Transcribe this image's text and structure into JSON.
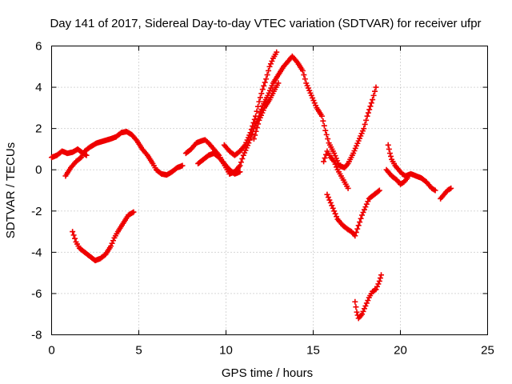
{
  "chart_data": {
    "type": "scatter",
    "title": "Day 141 of 2017, Sidereal Day-to-day VTEC variation (SDTVAR) for receiver ufpr",
    "xlabel": "GPS time / hours",
    "ylabel": "SDTVAR / TECUs",
    "xlim": [
      0,
      25
    ],
    "ylim": [
      -8,
      6
    ],
    "xticks": [
      0,
      5,
      10,
      15,
      20,
      25
    ],
    "yticks": [
      -8,
      -6,
      -4,
      -2,
      0,
      2,
      4,
      6
    ],
    "grid": true,
    "marker": "+",
    "color": "#ee0000",
    "series": [
      {
        "points": [
          [
            0,
            0.6
          ],
          [
            0.3,
            0.7
          ],
          [
            0.6,
            0.9
          ],
          [
            0.9,
            0.8
          ],
          [
            1.2,
            0.85
          ],
          [
            1.5,
            1.0
          ],
          [
            1.8,
            0.8
          ],
          [
            2.0,
            0.7
          ]
        ]
      },
      {
        "points": [
          [
            0.8,
            -0.3
          ],
          [
            1.1,
            0.1
          ],
          [
            1.4,
            0.4
          ],
          [
            1.7,
            0.6
          ],
          [
            1.9,
            0.9
          ],
          [
            2.2,
            1.1
          ],
          [
            2.6,
            1.3
          ],
          [
            3.0,
            1.4
          ],
          [
            3.4,
            1.5
          ],
          [
            3.7,
            1.6
          ],
          [
            4.0,
            1.8
          ],
          [
            4.3,
            1.85
          ],
          [
            4.6,
            1.7
          ],
          [
            4.9,
            1.4
          ],
          [
            5.2,
            1.0
          ],
          [
            5.5,
            0.7
          ],
          [
            5.8,
            0.3
          ],
          [
            6.0,
            0
          ],
          [
            6.3,
            -0.2
          ],
          [
            6.6,
            -0.25
          ],
          [
            6.9,
            -0.1
          ],
          [
            7.2,
            0.1
          ],
          [
            7.5,
            0.2
          ]
        ]
      },
      {
        "points": [
          [
            1.2,
            -3.0
          ],
          [
            1.4,
            -3.5
          ],
          [
            1.6,
            -3.8
          ],
          [
            1.9,
            -4.0
          ],
          [
            2.2,
            -4.2
          ],
          [
            2.5,
            -4.4
          ],
          [
            2.8,
            -4.3
          ],
          [
            3.1,
            -4.1
          ],
          [
            3.4,
            -3.7
          ],
          [
            3.6,
            -3.3
          ],
          [
            3.8,
            -3.0
          ],
          [
            4.1,
            -2.6
          ],
          [
            4.4,
            -2.2
          ],
          [
            4.7,
            -2.05
          ]
        ]
      },
      {
        "points": [
          [
            7.7,
            0.8
          ],
          [
            8.0,
            1.0
          ],
          [
            8.3,
            1.3
          ],
          [
            8.6,
            1.4
          ],
          [
            8.8,
            1.45
          ],
          [
            9.0,
            1.3
          ],
          [
            9.3,
            1.0
          ],
          [
            9.6,
            0.7
          ],
          [
            9.8,
            0.4
          ],
          [
            10.0,
            0.1
          ],
          [
            10.2,
            -0.2
          ],
          [
            10.5,
            -0.1
          ],
          [
            10.8,
            0.2
          ],
          [
            11.0,
            0.7
          ],
          [
            11.3,
            1.3
          ],
          [
            11.6,
            2.0
          ],
          [
            11.9,
            2.6
          ],
          [
            12.1,
            3.1
          ],
          [
            12.4,
            3.6
          ],
          [
            12.7,
            4.2
          ],
          [
            13.0,
            4.6
          ],
          [
            13.3,
            5.0
          ],
          [
            13.6,
            5.3
          ],
          [
            13.8,
            5.5
          ],
          [
            14.1,
            5.2
          ],
          [
            14.4,
            4.8
          ],
          [
            14.6,
            4.2
          ],
          [
            14.9,
            3.6
          ],
          [
            15.2,
            3.0
          ],
          [
            15.5,
            2.6
          ],
          [
            15.7,
            1.9
          ],
          [
            15.9,
            1.3
          ],
          [
            16.2,
            0.8
          ],
          [
            16.5,
            0.2
          ],
          [
            16.8,
            0.1
          ],
          [
            17.0,
            0.3
          ],
          [
            17.3,
            0.8
          ],
          [
            17.6,
            1.4
          ],
          [
            17.9,
            2.0
          ],
          [
            18.1,
            2.6
          ],
          [
            18.4,
            3.4
          ],
          [
            18.6,
            4.0
          ]
        ]
      },
      {
        "points": [
          [
            8.4,
            0.3
          ],
          [
            8.7,
            0.5
          ],
          [
            9.0,
            0.7
          ],
          [
            9.3,
            0.8
          ],
          [
            9.6,
            0.6
          ],
          [
            9.9,
            0.3
          ],
          [
            10.2,
            0
          ],
          [
            10.5,
            -0.2
          ],
          [
            10.8,
            -0.1
          ]
        ]
      },
      {
        "points": [
          [
            9.9,
            1.2
          ],
          [
            10.2,
            0.9
          ],
          [
            10.5,
            0.7
          ],
          [
            10.8,
            0.9
          ],
          [
            11.1,
            1.2
          ],
          [
            11.4,
            1.8
          ],
          [
            11.7,
            2.6
          ],
          [
            11.9,
            3.3
          ],
          [
            12.1,
            3.9
          ],
          [
            12.3,
            4.4
          ],
          [
            12.5,
            5.0
          ],
          [
            12.7,
            5.4
          ],
          [
            12.9,
            5.7
          ]
        ]
      },
      {
        "points": [
          [
            11.6,
            1.5
          ],
          [
            11.9,
            2.4
          ],
          [
            12.2,
            3.0
          ],
          [
            12.5,
            3.4
          ],
          [
            12.8,
            3.9
          ],
          [
            13.0,
            4.2
          ]
        ]
      },
      {
        "points": [
          [
            15.6,
            0.4
          ],
          [
            15.8,
            0.9
          ],
          [
            16.0,
            0.6
          ],
          [
            16.2,
            0.4
          ],
          [
            16.4,
            0.0
          ],
          [
            16.6,
            -0.3
          ],
          [
            16.8,
            -0.6
          ],
          [
            17.0,
            -0.9
          ]
        ]
      },
      {
        "points": [
          [
            15.8,
            -1.2
          ],
          [
            16.0,
            -1.6
          ],
          [
            16.2,
            -2.0
          ],
          [
            16.4,
            -2.4
          ],
          [
            16.7,
            -2.7
          ],
          [
            17.0,
            -2.9
          ],
          [
            17.2,
            -3.0
          ],
          [
            17.4,
            -3.2
          ],
          [
            17.6,
            -2.7
          ],
          [
            17.8,
            -2.2
          ],
          [
            18.0,
            -1.8
          ],
          [
            18.2,
            -1.4
          ],
          [
            18.5,
            -1.2
          ],
          [
            18.8,
            -1.0
          ]
        ]
      },
      {
        "points": [
          [
            17.4,
            -6.4
          ],
          [
            17.5,
            -6.9
          ],
          [
            17.6,
            -7.2
          ],
          [
            17.8,
            -7.0
          ],
          [
            18.0,
            -6.6
          ],
          [
            18.2,
            -6.2
          ],
          [
            18.4,
            -5.9
          ],
          [
            18.6,
            -5.8
          ],
          [
            18.8,
            -5.4
          ],
          [
            18.9,
            -5.1
          ]
        ]
      },
      {
        "points": [
          [
            19.3,
            1.2
          ],
          [
            19.4,
            0.8
          ],
          [
            19.5,
            0.5
          ],
          [
            19.7,
            0.2
          ],
          [
            19.9,
            0.0
          ],
          [
            20.1,
            -0.2
          ],
          [
            20.3,
            -0.3
          ],
          [
            20.6,
            -0.2
          ],
          [
            20.9,
            -0.3
          ],
          [
            21.2,
            -0.4
          ],
          [
            21.5,
            -0.6
          ],
          [
            21.8,
            -0.9
          ],
          [
            22.0,
            -1.0
          ]
        ]
      },
      {
        "points": [
          [
            19.2,
            0
          ],
          [
            19.5,
            -0.3
          ],
          [
            19.8,
            -0.5
          ],
          [
            20.0,
            -0.7
          ],
          [
            20.2,
            -0.6
          ],
          [
            20.4,
            -0.4
          ]
        ]
      },
      {
        "points": [
          [
            22.3,
            -1.4
          ],
          [
            22.5,
            -1.2
          ],
          [
            22.7,
            -1.0
          ],
          [
            22.9,
            -0.9
          ]
        ]
      }
    ]
  }
}
